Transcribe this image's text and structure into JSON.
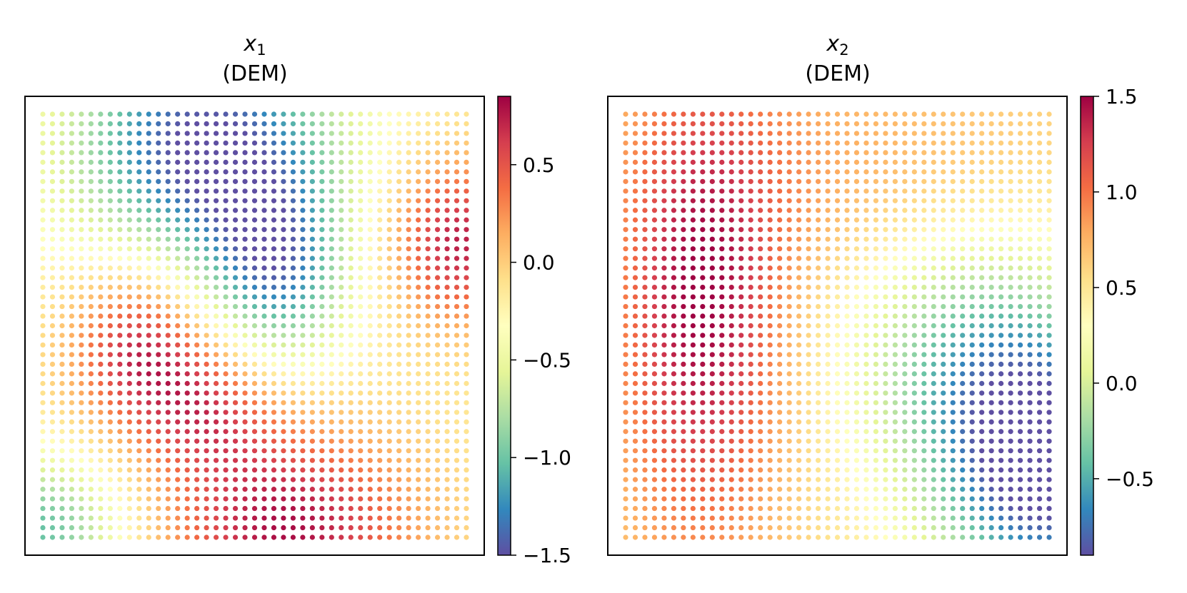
{
  "chart_data": [
    {
      "type": "scatter",
      "title_var": "x",
      "title_sub": "1",
      "subtitle": "(DEM)",
      "xlabel": "",
      "ylabel": "",
      "grid": false,
      "colormap": "Spectral_r",
      "colorbar": {
        "vmin": -1.5,
        "vmax": 0.85,
        "ticks": [
          0.5,
          0.0,
          -0.5,
          -1.0,
          -1.5
        ],
        "tick_labels": [
          "0.5",
          "0.0",
          "−0.5",
          "−1.0",
          "−1.5"
        ]
      },
      "grid_points": {
        "nx": 45,
        "ny": 45
      },
      "field": "x1"
    },
    {
      "type": "scatter",
      "title_var": "x",
      "title_sub": "2",
      "subtitle": "(DEM)",
      "xlabel": "",
      "ylabel": "",
      "grid": false,
      "colormap": "Spectral_r",
      "colorbar": {
        "vmin": -0.9,
        "vmax": 1.5,
        "ticks": [
          1.5,
          1.0,
          0.5,
          0.0,
          -0.5
        ],
        "tick_labels": [
          "1.5",
          "1.0",
          "0.5",
          "0.0",
          "−0.5"
        ]
      },
      "grid_points": {
        "nx": 45,
        "ny": 45
      },
      "field": "x2"
    }
  ],
  "colors": {
    "spectral_r": [
      "#5e4fa2",
      "#3288bd",
      "#66c2a5",
      "#abdda4",
      "#e6f598",
      "#ffffbf",
      "#fee08b",
      "#fdae61",
      "#f46d43",
      "#d53e4f",
      "#9e0142"
    ]
  }
}
